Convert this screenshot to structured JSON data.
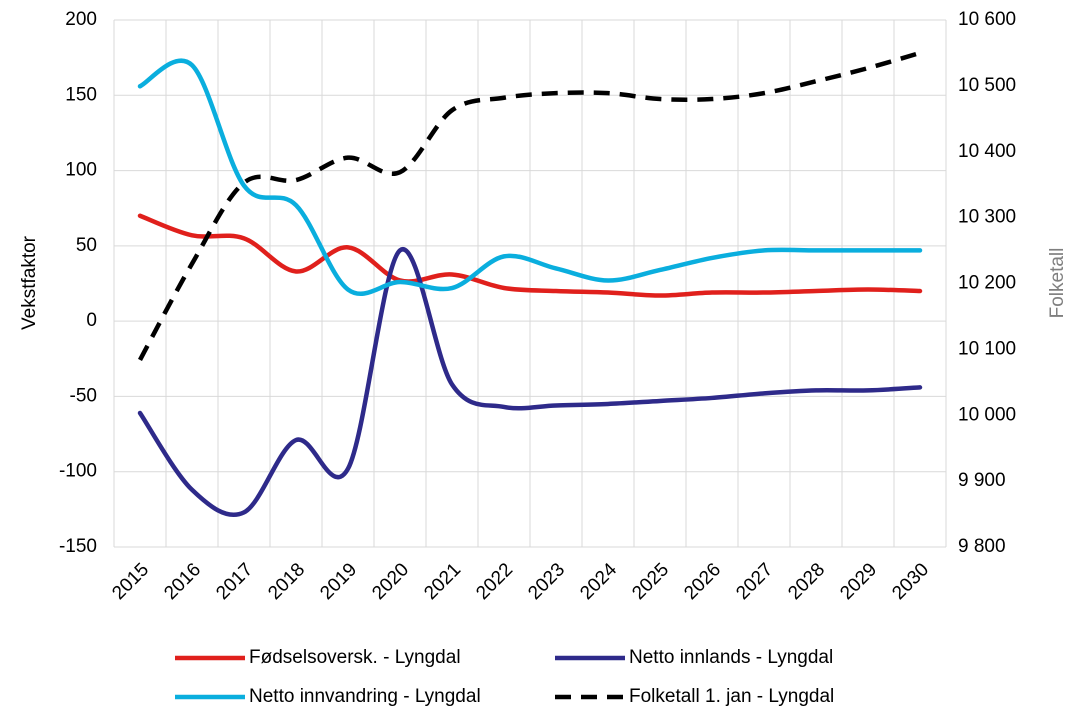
{
  "chart_data": {
    "type": "line",
    "categories": [
      "2015",
      "2016",
      "2017",
      "2018",
      "2019",
      "2020",
      "2021",
      "2022",
      "2023",
      "2024",
      "2025",
      "2026",
      "2027",
      "2028",
      "2029",
      "2030"
    ],
    "ylabel": "Vekstfaktor",
    "y2label": "Folketall",
    "ylim": [
      -150,
      200
    ],
    "yticks": [
      -150,
      -100,
      -50,
      0,
      50,
      100,
      150,
      200
    ],
    "y2lim": [
      9800,
      10600
    ],
    "y2ticks": [
      {
        "value": 9800,
        "label": "9 800"
      },
      {
        "value": 9900,
        "label": "9 900"
      },
      {
        "value": 10000,
        "label": "10 000"
      },
      {
        "value": 10100,
        "label": "10 100"
      },
      {
        "value": 10200,
        "label": "10 200"
      },
      {
        "value": 10300,
        "label": "10 300"
      },
      {
        "value": 10400,
        "label": "10 400"
      },
      {
        "value": 10500,
        "label": "10 500"
      },
      {
        "value": 10600,
        "label": "10 600"
      }
    ],
    "grid": true,
    "smooth": true,
    "legend": "bottom",
    "series": [
      {
        "name": "Fødselsoversk. - Lyngdal",
        "color": "#e0201c",
        "values": [
          70,
          57,
          55,
          33,
          49,
          27,
          31,
          22,
          20,
          19,
          17,
          19,
          19,
          20,
          21,
          20
        ]
      },
      {
        "name": "Netto innlands - Lyngdal",
        "color": "#2e2a8a",
        "values": [
          -61,
          -112,
          -127,
          -79,
          -98,
          47,
          -42,
          -57,
          -56,
          -55,
          -53,
          -51,
          -48,
          -46,
          -46,
          -44
        ]
      },
      {
        "name": "Netto innvandring - Lyngdal",
        "color": "#0aaede",
        "values": [
          156,
          170,
          90,
          77,
          21,
          26,
          22,
          43,
          35,
          27,
          34,
          42,
          47,
          47,
          47,
          47
        ]
      },
      {
        "name": "Folketall 1. jan - Lyngdal",
        "color": "#000000",
        "dashed": true,
        "axis": "y2",
        "values": [
          10084,
          10230,
          10353,
          10357,
          10391,
          10369,
          10463,
          10482,
          10489,
          10489,
          10480,
          10480,
          10489,
          10507,
          10527,
          10550
        ]
      }
    ]
  }
}
